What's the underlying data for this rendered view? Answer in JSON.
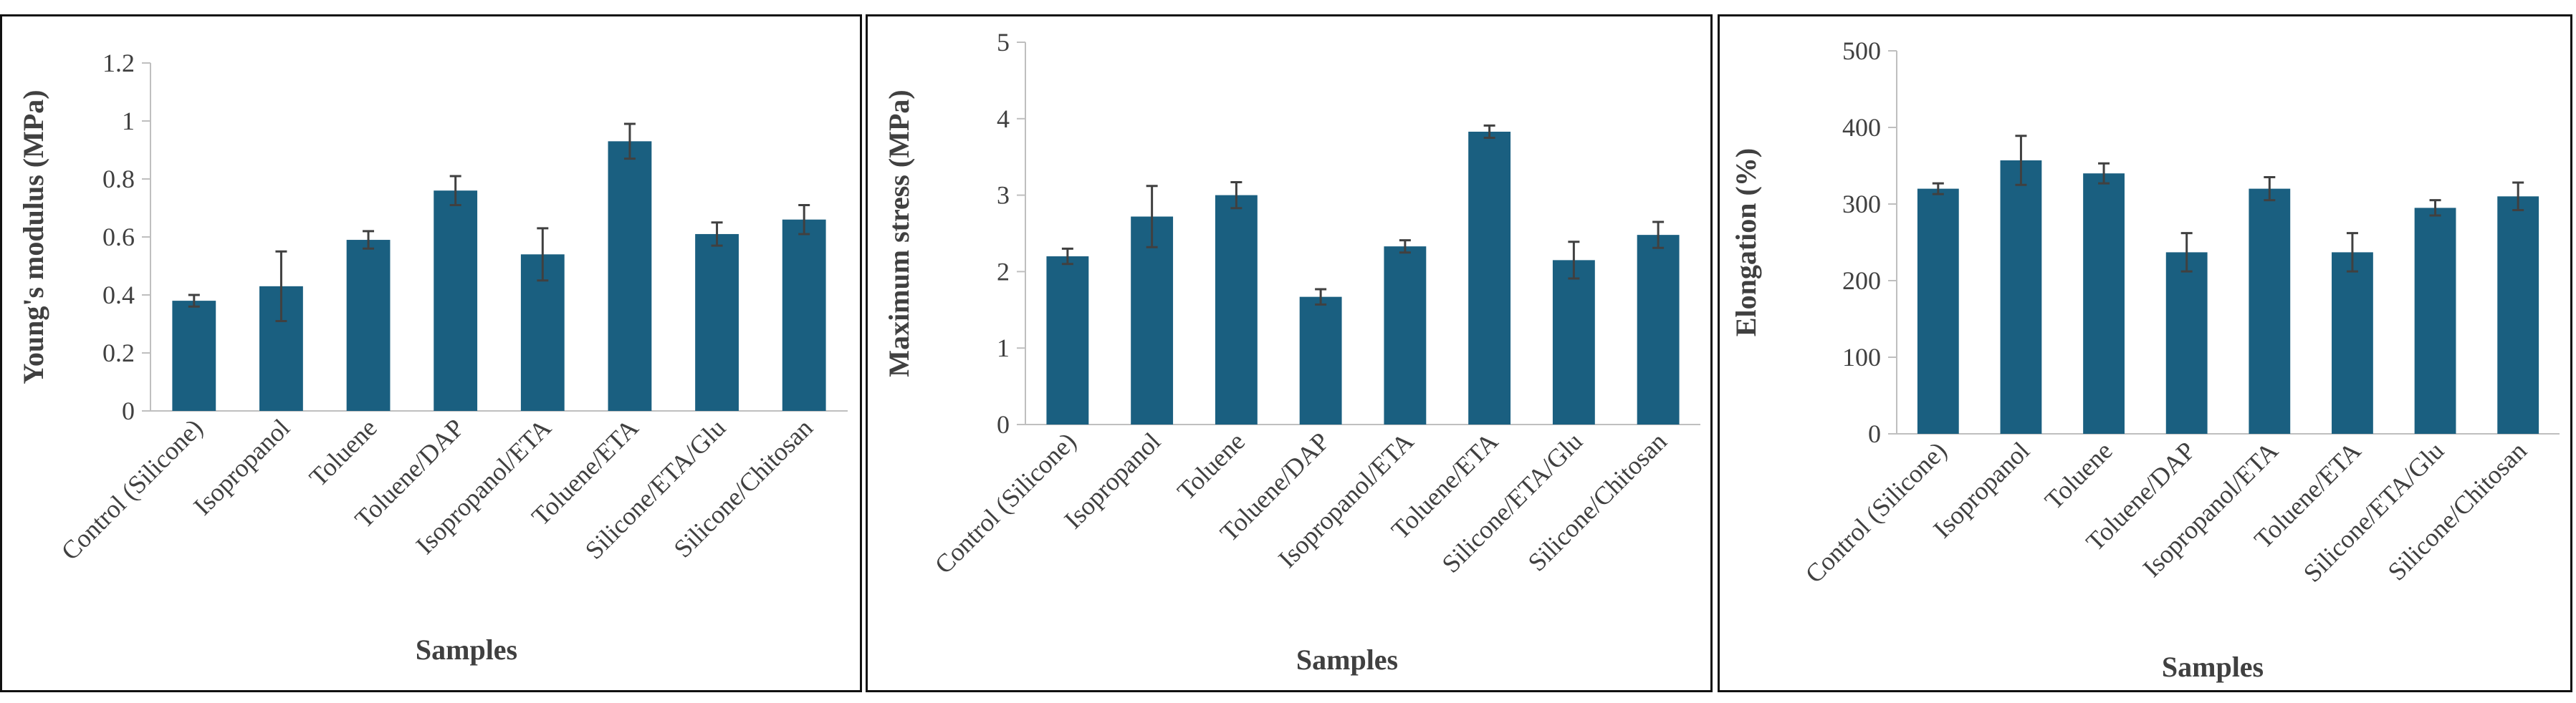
{
  "colors": {
    "bar": "#1a5f80",
    "error": "#404040",
    "axis": "#bfbfbf",
    "frame": "#111111"
  },
  "chart_data": [
    {
      "type": "bar",
      "title": "",
      "xlabel": "Samples",
      "ylabel": "Young's modulus (MPa)",
      "ylim": [
        0,
        1.2
      ],
      "yticks": [
        "0",
        "0.2",
        "0.4",
        "0.6",
        "0.8",
        "1",
        "1.2"
      ],
      "categories": [
        "Control (Silicone)",
        "Isopropanol",
        "Toluene",
        "Toluene/DAP",
        "Isopropanol/ETA",
        "Toluene/ETA",
        "Silicone/ETA/Glu",
        "Silicone/Chitosan"
      ],
      "values": [
        0.38,
        0.43,
        0.59,
        0.76,
        0.54,
        0.93,
        0.61,
        0.66
      ],
      "errors": [
        0.02,
        0.12,
        0.03,
        0.05,
        0.09,
        0.06,
        0.04,
        0.05
      ]
    },
    {
      "type": "bar",
      "title": "",
      "xlabel": "Samples",
      "ylabel": "Maximum stress (MPa)",
      "ylim": [
        0,
        5
      ],
      "yticks": [
        "0",
        "1",
        "2",
        "3",
        "4",
        "5"
      ],
      "categories": [
        "Control (Silicone)",
        "Isopropanol",
        "Toluene",
        "Toluene/DAP",
        "Isopropanol/ETA",
        "Toluene/ETA",
        "Silicone/ETA/Glu",
        "Silicone/Chitosan"
      ],
      "values": [
        2.2,
        2.72,
        3.0,
        1.67,
        2.33,
        3.83,
        2.15,
        2.48
      ],
      "errors": [
        0.1,
        0.4,
        0.17,
        0.1,
        0.08,
        0.08,
        0.24,
        0.17
      ]
    },
    {
      "type": "bar",
      "title": "",
      "xlabel": "Samples",
      "ylabel": "Elongation (%)",
      "ylim": [
        0,
        500
      ],
      "yticks": [
        "0",
        "100",
        "200",
        "300",
        "400",
        "500"
      ],
      "categories": [
        "Control (Silicone)",
        "Isopropanol",
        "Toluene",
        "Toluene/DAP",
        "Isopropanol/ETA",
        "Toluene/ETA",
        "Silicone/ETA/Glu",
        "Silicone/Chitosan"
      ],
      "values": [
        320,
        357,
        340,
        237,
        320,
        237,
        295,
        310
      ],
      "errors": [
        7,
        32,
        13,
        25,
        15,
        25,
        10,
        18
      ]
    }
  ]
}
